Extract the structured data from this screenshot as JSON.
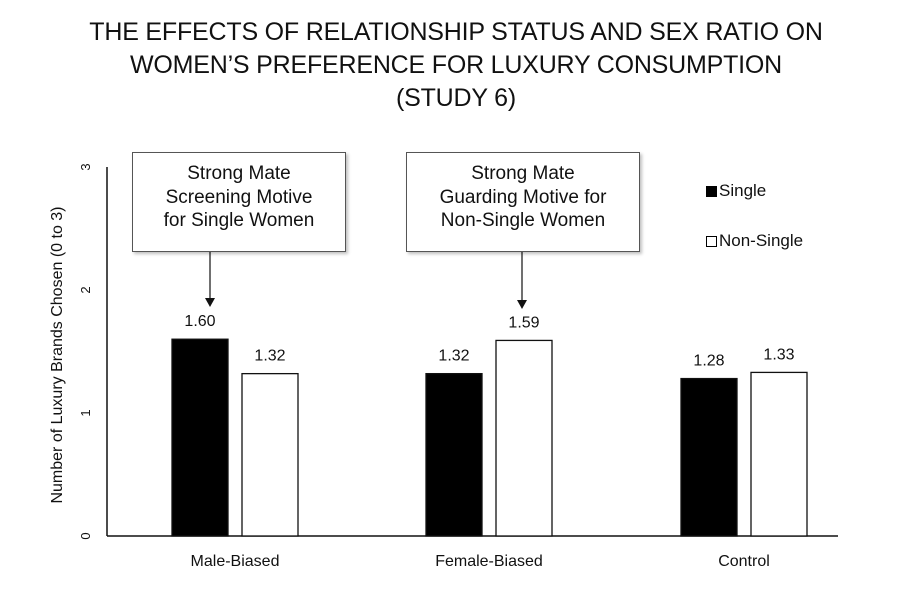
{
  "title_lines": [
    "THE EFFECTS OF RELATIONSHIP STATUS AND SEX RATIO ON",
    "WOMEN’S PREFERENCE FOR LUXURY CONSUMPTION",
    "(STUDY 6)"
  ],
  "callouts": [
    {
      "lines": [
        "Strong Mate",
        "Screening Motive",
        "for Single Women"
      ]
    },
    {
      "lines": [
        "Strong Mate",
        "Guarding Motive for",
        "Non-Single Women"
      ]
    }
  ],
  "legend": [
    {
      "label": "Single",
      "color": "#000000"
    },
    {
      "label": "Non-Single",
      "color": "#ffffff"
    }
  ],
  "colors": {
    "single": "#000000",
    "non_single": "#ffffff",
    "border": "#111111"
  },
  "chart_data": {
    "type": "bar",
    "categories": [
      "Male-Biased",
      "Female-Biased",
      "Control"
    ],
    "series": [
      {
        "name": "Single",
        "values": [
          1.6,
          1.32,
          1.28
        ]
      },
      {
        "name": "Non-Single",
        "values": [
          1.32,
          1.59,
          1.33
        ]
      }
    ],
    "data_labels": [
      [
        "1.60",
        "1.32",
        "1.28"
      ],
      [
        "1.32",
        "1.59",
        "1.33"
      ]
    ],
    "ylabel": "Number of Luxury Brands Chosen (0 to 3)",
    "xlabel": "",
    "ylim": [
      0,
      3
    ],
    "yticks": [
      "0",
      "1",
      "2",
      "3"
    ],
    "legend_position": "top-right",
    "grid": false
  }
}
